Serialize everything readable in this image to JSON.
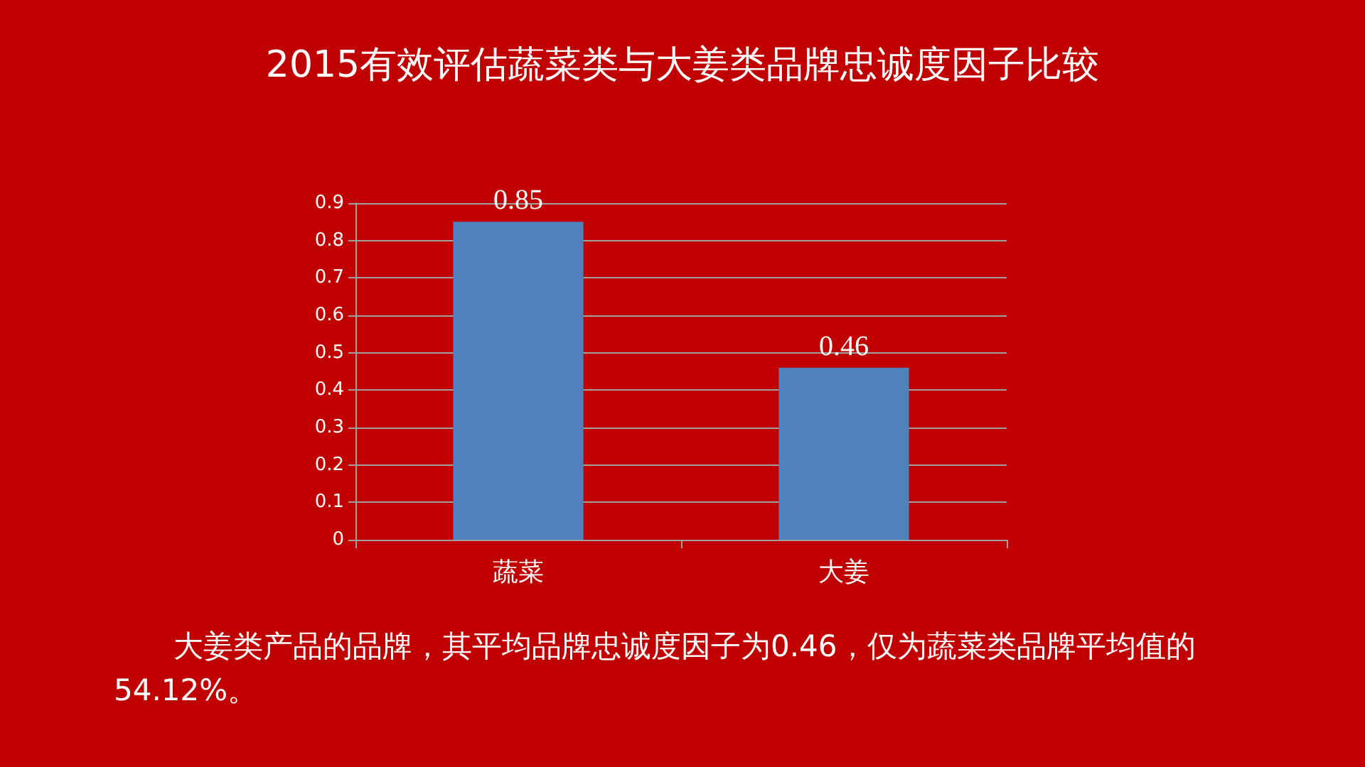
{
  "chart_data": {
    "type": "bar",
    "title": "2015有效评估蔬菜类与大姜类品牌忠诚度因子比较",
    "categories": [
      "蔬菜",
      "大姜"
    ],
    "values": [
      0.85,
      0.46
    ],
    "color": "#4f81bd",
    "ylim": [
      0,
      0.9
    ],
    "yticks": [
      0,
      0.1,
      0.2,
      0.3,
      0.4,
      0.5,
      0.6,
      0.7,
      0.8,
      0.9
    ],
    "grid": "y",
    "data_labels": true,
    "annotations": [
      "大姜类产品的品牌，其平均品牌忠诚度因子为0.46，仅为蔬菜类品牌平均值的54.12%。"
    ]
  }
}
